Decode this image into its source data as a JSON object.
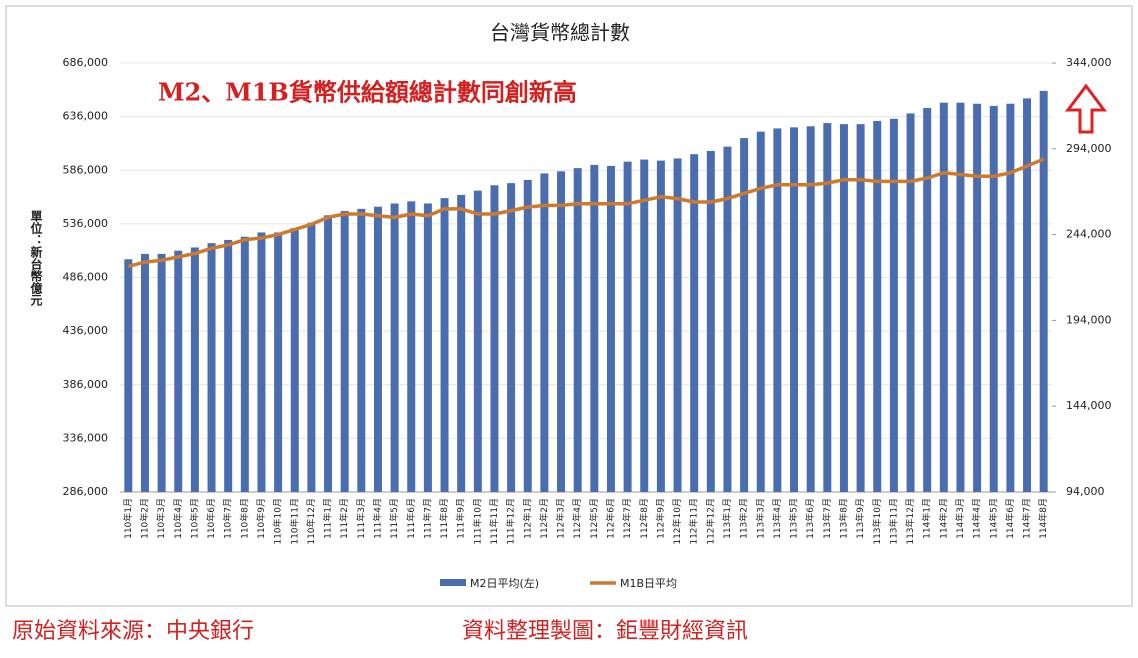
{
  "chart_data": {
    "type": "bar-line",
    "title": "台灣貨幣總計數",
    "annotation": "M2、M1B貨幣供給額總計數同創新高",
    "y_label": "單位：新台幣億元",
    "source": "原始資料來源：中央銀行",
    "credit": "資料整理製圖：鉅豐財經資訊",
    "categories": [
      "110年1月",
      "110年2月",
      "110年3月",
      "110年4月",
      "110年5月",
      "110年6月",
      "110年7月",
      "110年8月",
      "110年9月",
      "110年10月",
      "110年11月",
      "110年12月",
      "111年1月",
      "111年2月",
      "111年3月",
      "111年4月",
      "111年5月",
      "111年6月",
      "111年7月",
      "111年8月",
      "111年9月",
      "111年10月",
      "111年11月",
      "111年12月",
      "112年1月",
      "112年2月",
      "112年3月",
      "112年4月",
      "112年5月",
      "112年6月",
      "112年7月",
      "112年8月",
      "112年9月",
      "112年10月",
      "112年11月",
      "112年12月",
      "113年1月",
      "113年2月",
      "113年3月",
      "113年4月",
      "113年5月",
      "113年6月",
      "113年7月",
      "113年8月",
      "113年9月",
      "113年10月",
      "113年11月",
      "113年12月",
      "114年1月",
      "114年2月",
      "114年3月",
      "114年4月",
      "114年5月",
      "114年6月",
      "114年7月",
      "114年8月"
    ],
    "series": [
      {
        "name": "M2日平均(左)",
        "type": "bar",
        "color": "#4a6db0",
        "axis": "y",
        "values": [
          503000,
          508000,
          508000,
          511000,
          514000,
          518000,
          521000,
          524000,
          528000,
          528000,
          532000,
          537000,
          544000,
          548000,
          550000,
          552000,
          555000,
          557000,
          555000,
          560000,
          563000,
          567000,
          572000,
          574000,
          577000,
          583000,
          585000,
          588000,
          591000,
          590000,
          594000,
          596000,
          595000,
          597000,
          601000,
          604000,
          608000,
          616000,
          622000,
          625000,
          626000,
          627000,
          630000,
          629000,
          629000,
          632000,
          634000,
          639000,
          644000,
          649000,
          649000,
          648000,
          646000,
          648000,
          653000,
          660000
        ]
      },
      {
        "name": "M1B日平均",
        "type": "line",
        "color": "#cc7a2e",
        "axis": "y2",
        "values": [
          225500,
          228000,
          229000,
          231000,
          233000,
          236000,
          238000,
          241000,
          242000,
          244000,
          247000,
          250000,
          254000,
          256000,
          256000,
          255000,
          254000,
          256000,
          255000,
          259000,
          259000,
          256000,
          256000,
          258000,
          260000,
          261000,
          261000,
          262000,
          262000,
          262000,
          262000,
          264000,
          266000,
          265000,
          263000,
          263000,
          265000,
          268000,
          271000,
          273000,
          273000,
          273000,
          274000,
          276000,
          276000,
          275000,
          275000,
          275000,
          277000,
          280000,
          279000,
          278000,
          278000,
          280000,
          284000,
          288000
        ]
      }
    ],
    "ylim": [
      286000,
      686000
    ],
    "yticks": [
      {
        "value": 286000,
        "label": "286,000"
      },
      {
        "value": 336000,
        "label": "336,000"
      },
      {
        "value": 386000,
        "label": "386,000"
      },
      {
        "value": 436000,
        "label": "436,000"
      },
      {
        "value": 486000,
        "label": "486,000"
      },
      {
        "value": 536000,
        "label": "536,000"
      },
      {
        "value": 586000,
        "label": "586,000"
      },
      {
        "value": 636000,
        "label": "636,000"
      },
      {
        "value": 686000,
        "label": "686,000"
      }
    ],
    "y2lim": [
      94000,
      344000
    ],
    "y2ticks": [
      {
        "value": 94000,
        "label": "94,000"
      },
      {
        "value": 144000,
        "label": "144,000"
      },
      {
        "value": 194000,
        "label": "194,000"
      },
      {
        "value": 244000,
        "label": "244,000"
      },
      {
        "value": 294000,
        "label": "294,000"
      },
      {
        "value": 344000,
        "label": "344,000"
      }
    ]
  }
}
